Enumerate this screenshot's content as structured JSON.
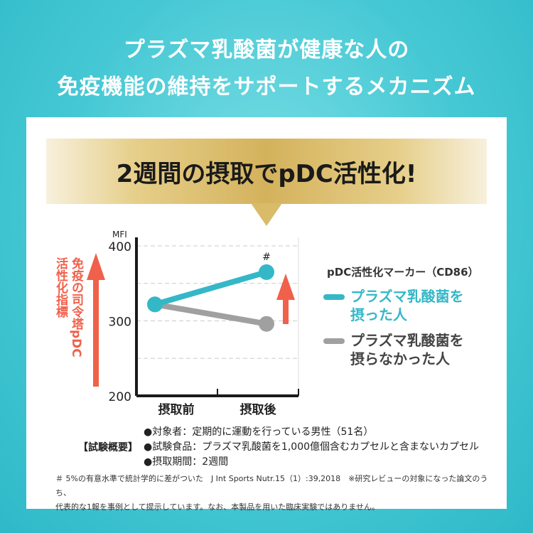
{
  "header": {
    "title_line1": "プラズマ乳酸菌が健康な人の",
    "title_line2": "免疫機能の維持をサポートするメカニズム"
  },
  "banner": {
    "text": "2週間の摂取でpDC活性化!"
  },
  "side_label": {
    "col1": "免疫の司令塔pDC",
    "col2": "活性化指標"
  },
  "colors": {
    "teal": "#34b8c8",
    "gray": "#a0a0a0",
    "orange": "#f0604a",
    "gold": "#d4b25c"
  },
  "chart_data": {
    "type": "line",
    "ylabel": "MFI",
    "ylim": [
      200,
      400
    ],
    "yticks": [
      200,
      300,
      400
    ],
    "grid_lines": [
      250,
      300,
      350,
      400
    ],
    "categories": [
      "摂取前",
      "摂取後"
    ],
    "legend_title": "pDC活性化マーカー（CD86）",
    "series": [
      {
        "name": "プラズマ乳酸菌を摂った人",
        "name_line1": "プラズマ乳酸菌を",
        "name_line2": "摂った人",
        "values": [
          322,
          365
        ],
        "color": "#34b8c8",
        "annotation": "#"
      },
      {
        "name": "プラズマ乳酸菌を摂らなかった人",
        "name_line1": "プラズマ乳酸菌を",
        "name_line2": "摂らなかった人",
        "values": [
          322,
          296
        ],
        "color": "#a0a0a0"
      }
    ]
  },
  "summary": {
    "heading": "【試験概要】",
    "items": [
      "●対象者：定期的に運動を行っている男性（51名）",
      "●試験食品：プラズマ乳酸菌を1,000億個含むカプセルと含まないカプセル",
      "●摂取期間：2週間"
    ]
  },
  "footnote": {
    "line1": "＃ 5%の有意水準で統計学的に差がついた　J Int Sports Nutr.15（1）:39,2018　※研究レビューの対象になった論文のうち、",
    "line2": "代表的な1報を事例として提示しています。なお、本製品を用いた臨床実験ではありません。"
  }
}
